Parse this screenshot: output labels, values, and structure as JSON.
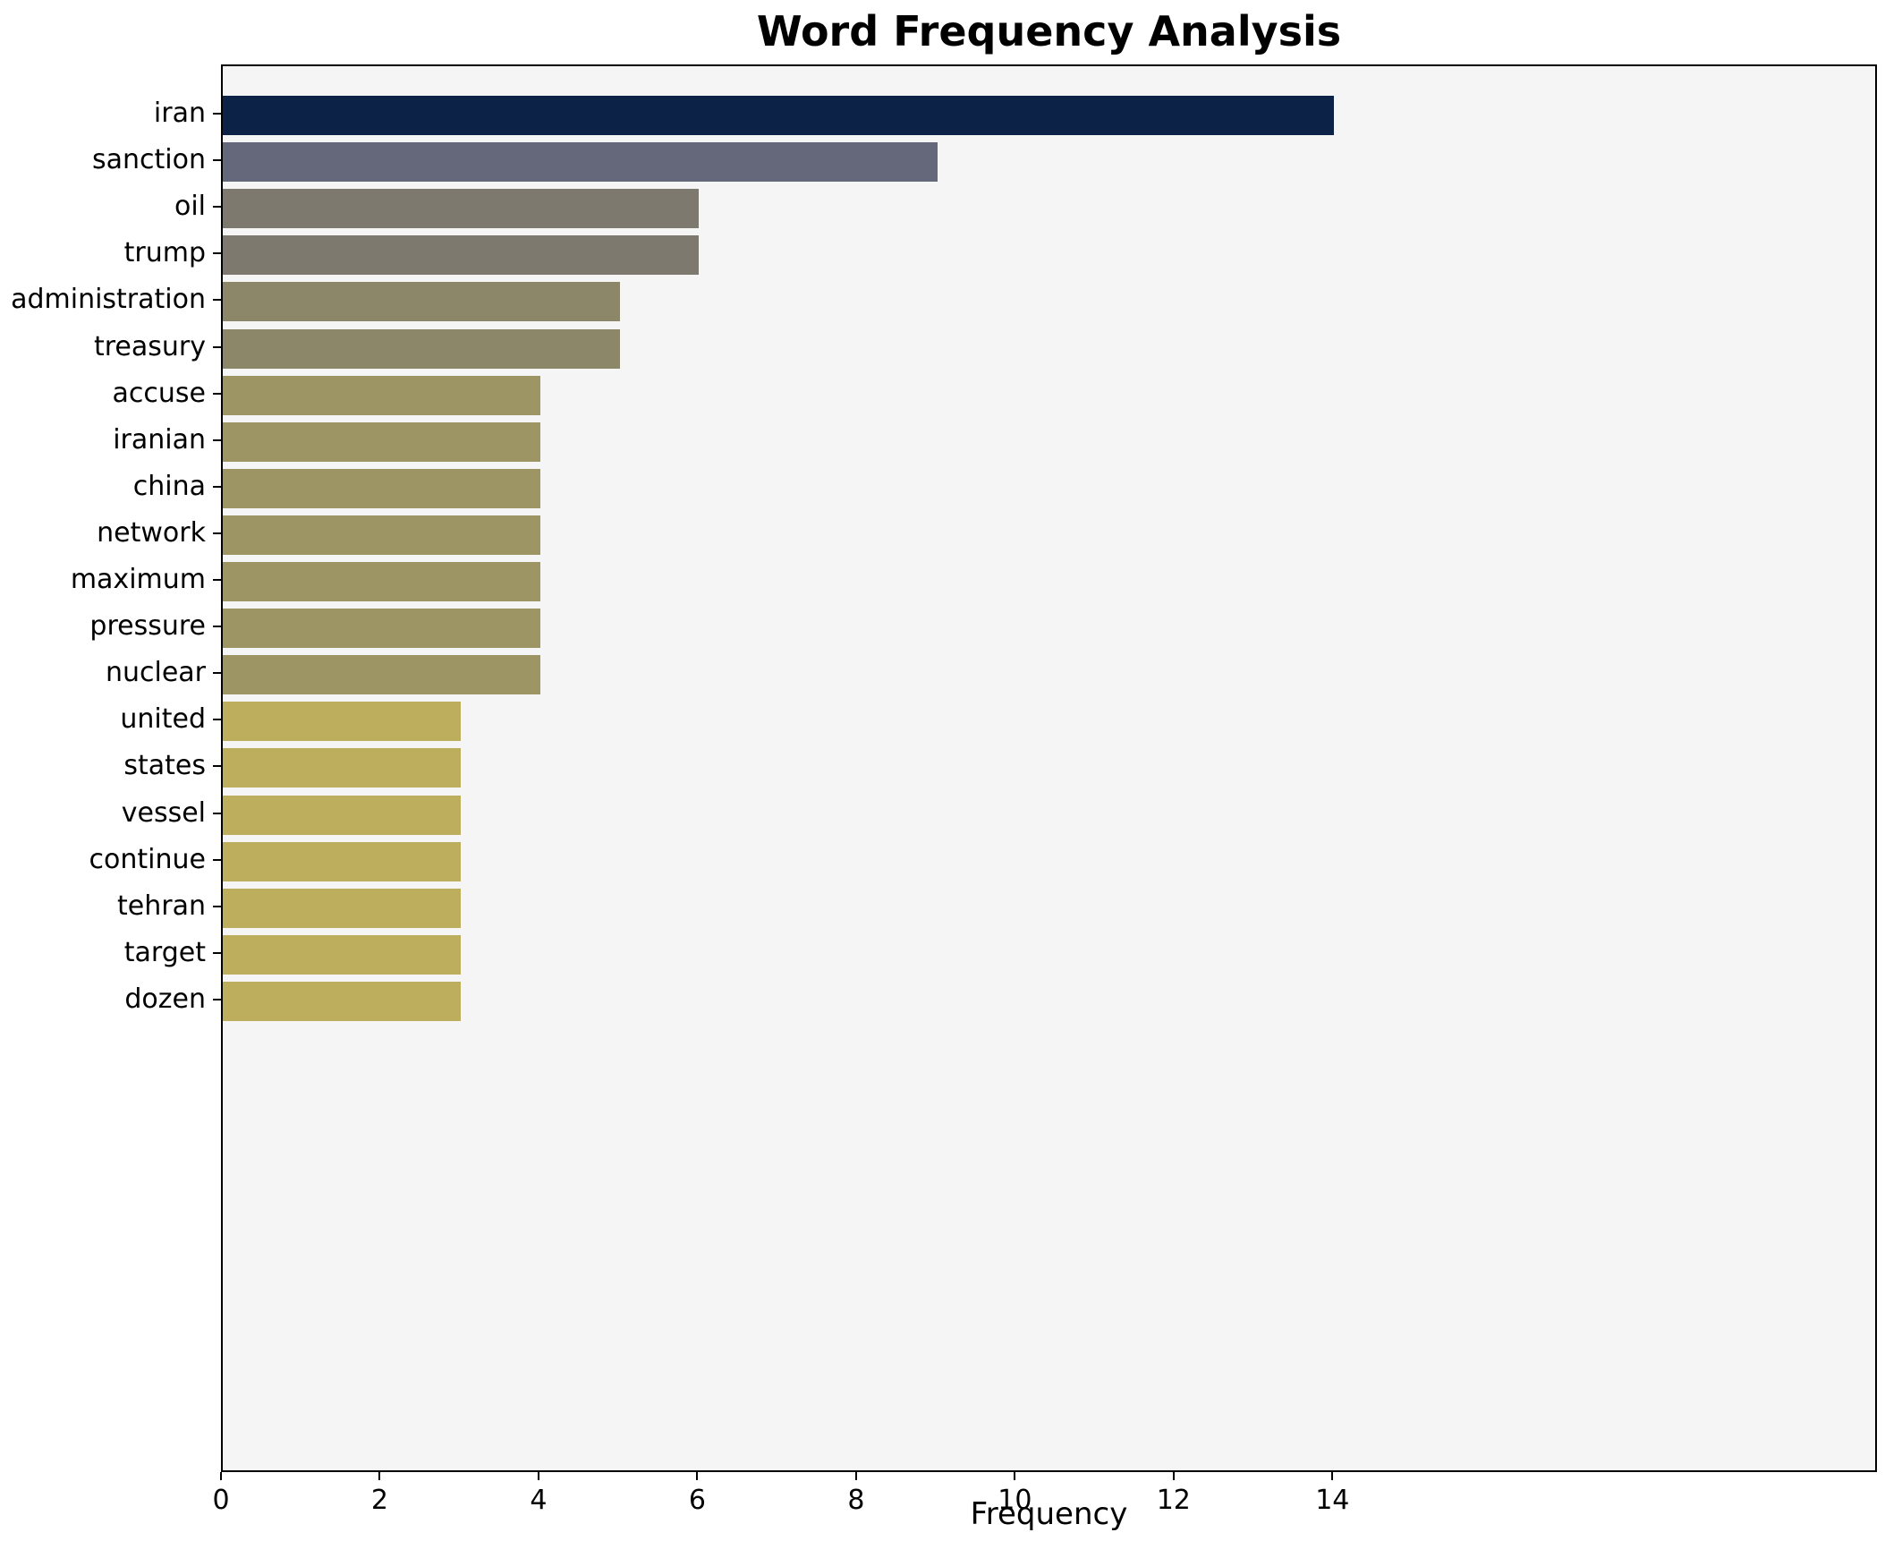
{
  "chart_data": {
    "type": "bar",
    "orientation": "horizontal",
    "title": "Word Frequency Analysis",
    "xlabel": "Frequency",
    "ylabel": "",
    "categories": [
      "iran",
      "sanction",
      "oil",
      "trump",
      "administration",
      "treasury",
      "accuse",
      "iranian",
      "china",
      "network",
      "maximum",
      "pressure",
      "nuclear",
      "united",
      "states",
      "vessel",
      "continue",
      "tehran",
      "target",
      "dozen"
    ],
    "values": [
      14,
      9,
      6,
      6,
      5,
      5,
      4,
      4,
      4,
      4,
      4,
      4,
      4,
      3,
      3,
      3,
      3,
      3,
      3,
      3
    ],
    "bar_colors": [
      "#0c2246",
      "#65687b",
      "#7d796e",
      "#7d796e",
      "#8c8769",
      "#8c8769",
      "#9d9564",
      "#9d9564",
      "#9d9564",
      "#9d9564",
      "#9d9564",
      "#9d9564",
      "#9d9564",
      "#bcae5c",
      "#bcae5c",
      "#bcae5c",
      "#bcae5c",
      "#bcae5c",
      "#bcae5c",
      "#bcae5c"
    ],
    "xlim": [
      0,
      20.86
    ],
    "xticks": [
      0,
      2,
      4,
      6,
      8,
      10,
      12,
      14
    ],
    "grid": false,
    "legend": "none",
    "plot_background": "#f5f5f6",
    "page_background": "#ffffff",
    "colormap": "cividis"
  }
}
